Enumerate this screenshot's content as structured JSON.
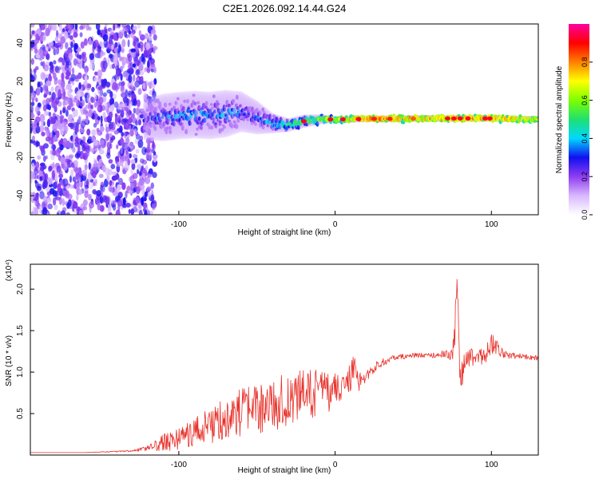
{
  "title": "C2E1.2026.092.14.44.G24",
  "colors": {
    "snr_line": "#e8312a",
    "axis": "#000000",
    "background": "#ffffff"
  },
  "chart_data": [
    {
      "type": "heatmap",
      "name": "spectrogram",
      "xlabel": "Height of straight line (km)",
      "ylabel": "Frequency (Hz)",
      "xlim": [
        -195,
        130
      ],
      "ylim": [
        -50,
        50
      ],
      "x_ticks": [
        -100,
        0,
        100
      ],
      "x_tick_labels": [
        "-100",
        "0",
        "100"
      ],
      "y_ticks": [
        -40,
        -20,
        0,
        20,
        40
      ],
      "y_tick_labels": [
        "-40",
        "-20",
        "0",
        "20",
        "40"
      ],
      "noise_region_x": [
        -195,
        -115
      ],
      "ridge": {
        "x": [
          -122,
          -110,
          -100,
          -90,
          -80,
          -70,
          -60,
          -50,
          -40,
          -30,
          -20,
          -10,
          0,
          10,
          20,
          40,
          60,
          80,
          100,
          130
        ],
        "center_hz": [
          0,
          1,
          2,
          2.5,
          2,
          3,
          4,
          1,
          -2,
          -3,
          -1,
          0,
          0,
          0,
          0.3,
          0.3,
          0.5,
          0.5,
          0.5,
          0
        ],
        "spread_hz": [
          6,
          7,
          7,
          7,
          7,
          7,
          6,
          5,
          3,
          2,
          2,
          1.5,
          1,
          1,
          1,
          1,
          1,
          1,
          1,
          1
        ],
        "amplitude": [
          0.25,
          0.35,
          0.35,
          0.4,
          0.35,
          0.4,
          0.35,
          0.3,
          0.45,
          0.5,
          0.55,
          0.6,
          0.65,
          0.75,
          0.8,
          0.8,
          0.75,
          0.8,
          0.8,
          0.7
        ]
      },
      "peaks": [
        {
          "x": -20,
          "amplitude": 1.0
        },
        {
          "x": -3,
          "amplitude": 1.0
        },
        {
          "x": 5,
          "amplitude": 1.0
        },
        {
          "x": 15,
          "amplitude": 1.0
        },
        {
          "x": 25,
          "amplitude": 0.95
        },
        {
          "x": 35,
          "amplitude": 0.95
        },
        {
          "x": 50,
          "amplitude": 0.9
        },
        {
          "x": 72,
          "amplitude": 1.0
        },
        {
          "x": 76,
          "amplitude": 1.0
        },
        {
          "x": 80,
          "amplitude": 1.0
        },
        {
          "x": 85,
          "amplitude": 1.0
        },
        {
          "x": 96,
          "amplitude": 1.0
        },
        {
          "x": 99,
          "amplitude": 1.0
        }
      ],
      "colorbar": {
        "label": "Normalized spectral amplitude",
        "range": [
          0,
          1
        ],
        "ticks": [
          0.0,
          0.2,
          0.4,
          0.6,
          0.8
        ],
        "tick_labels": [
          "0.0",
          "0.2",
          "0.4",
          "0.6",
          "0.8"
        ],
        "colormap": [
          "#ffffff",
          "#d8b8ff",
          "#8f3cf0",
          "#1010f0",
          "#00d8ff",
          "#20e070",
          "#7cff00",
          "#ffff00",
          "#ff8000",
          "#ff0000",
          "#ff00a0"
        ]
      }
    },
    {
      "type": "line",
      "name": "snr",
      "xlabel": "Height of straight line (km)",
      "ylabel": "SNR (10 * v/v)",
      "y_multiplier_label": "(x10⁴)",
      "xlim": [
        -195,
        130
      ],
      "ylim": [
        0,
        2.3
      ],
      "x_ticks": [
        -100,
        0,
        100
      ],
      "x_tick_labels": [
        "-100",
        "0",
        "100"
      ],
      "y_ticks": [
        0.5,
        1.0,
        1.5,
        2.0
      ],
      "y_tick_labels": [
        "0.5",
        "1.0",
        "1.5",
        "2.0"
      ],
      "series": [
        {
          "name": "SNR",
          "color": "#e8312a",
          "x": [
            -195,
            -160,
            -130,
            -120,
            -110,
            -100,
            -90,
            -80,
            -70,
            -60,
            -50,
            -40,
            -30,
            -20,
            -10,
            0,
            5,
            10,
            12,
            15,
            20,
            25,
            30,
            40,
            50,
            60,
            70,
            75,
            77,
            78,
            80,
            85,
            90,
            95,
            100,
            110,
            120,
            130
          ],
          "values": [
            0.03,
            0.03,
            0.05,
            0.08,
            0.15,
            0.2,
            0.28,
            0.35,
            0.45,
            0.5,
            0.55,
            0.6,
            0.68,
            0.72,
            0.75,
            0.78,
            0.82,
            0.95,
            1.05,
            0.88,
            0.95,
            1.05,
            1.12,
            1.18,
            1.2,
            1.2,
            1.22,
            1.2,
            1.6,
            2.2,
            0.95,
            1.15,
            1.2,
            1.18,
            1.35,
            1.2,
            1.19,
            1.17
          ],
          "noise_amplitude": [
            0,
            0,
            0.01,
            0.03,
            0.1,
            0.14,
            0.18,
            0.22,
            0.26,
            0.3,
            0.3,
            0.32,
            0.32,
            0.3,
            0.28,
            0.22,
            0.15,
            0.18,
            0.15,
            0.12,
            0.08,
            0.06,
            0.05,
            0.03,
            0.03,
            0.03,
            0.04,
            0.08,
            0.25,
            0.2,
            0.2,
            0.12,
            0.1,
            0.12,
            0.15,
            0.04,
            0.03,
            0.03
          ]
        }
      ]
    }
  ]
}
